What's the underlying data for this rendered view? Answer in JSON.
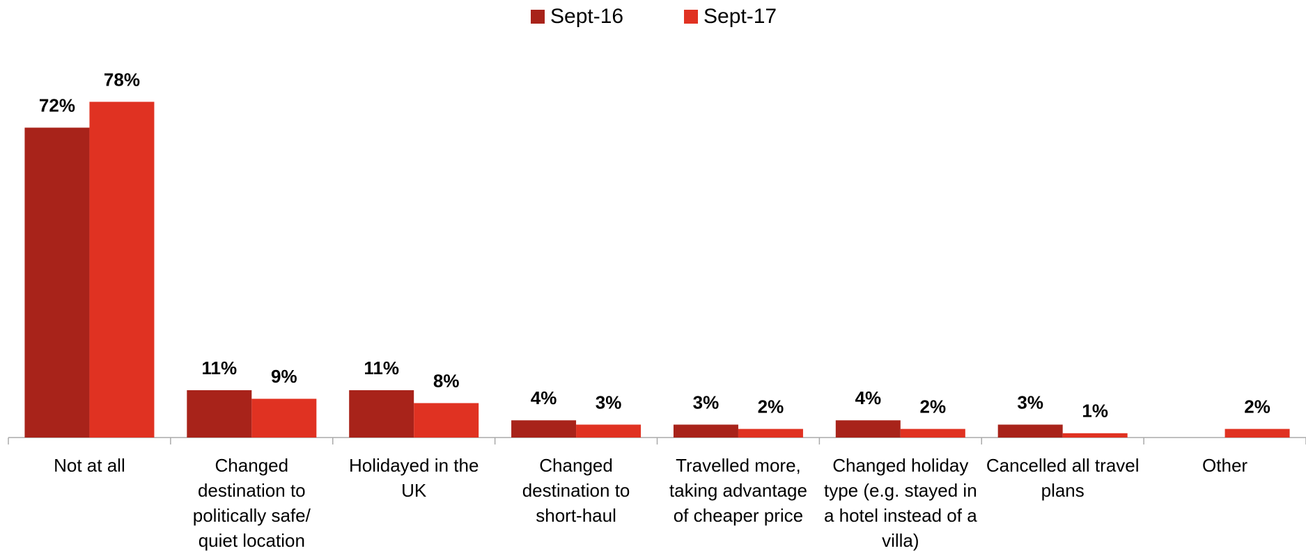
{
  "chart_data": {
    "type": "bar",
    "categories": [
      "Not at all",
      "Changed destination to politically safe/ quiet location",
      "Holidayed in the UK",
      "Changed destination to short-haul",
      "Travelled more, taking advantage of cheaper price",
      "Changed holiday type (e.g. stayed in a hotel instead of a villa)",
      "Cancelled all travel plans",
      "Other"
    ],
    "series": [
      {
        "name": "Sept-16",
        "color": "#a8231a",
        "values": [
          72,
          11,
          11,
          4,
          3,
          4,
          3,
          null
        ],
        "value_labels": [
          "72%",
          "11%",
          "11%",
          "4%",
          "3%",
          "4%",
          "3%",
          null
        ]
      },
      {
        "name": "Sept-17",
        "color": "#e03222",
        "values": [
          78,
          9,
          8,
          3,
          2,
          2,
          1,
          2
        ],
        "value_labels": [
          "78%",
          "9%",
          "8%",
          "3%",
          "2%",
          "2%",
          "1%",
          "2%"
        ]
      }
    ],
    "ylim": [
      0,
      80
    ],
    "legend": "top"
  }
}
